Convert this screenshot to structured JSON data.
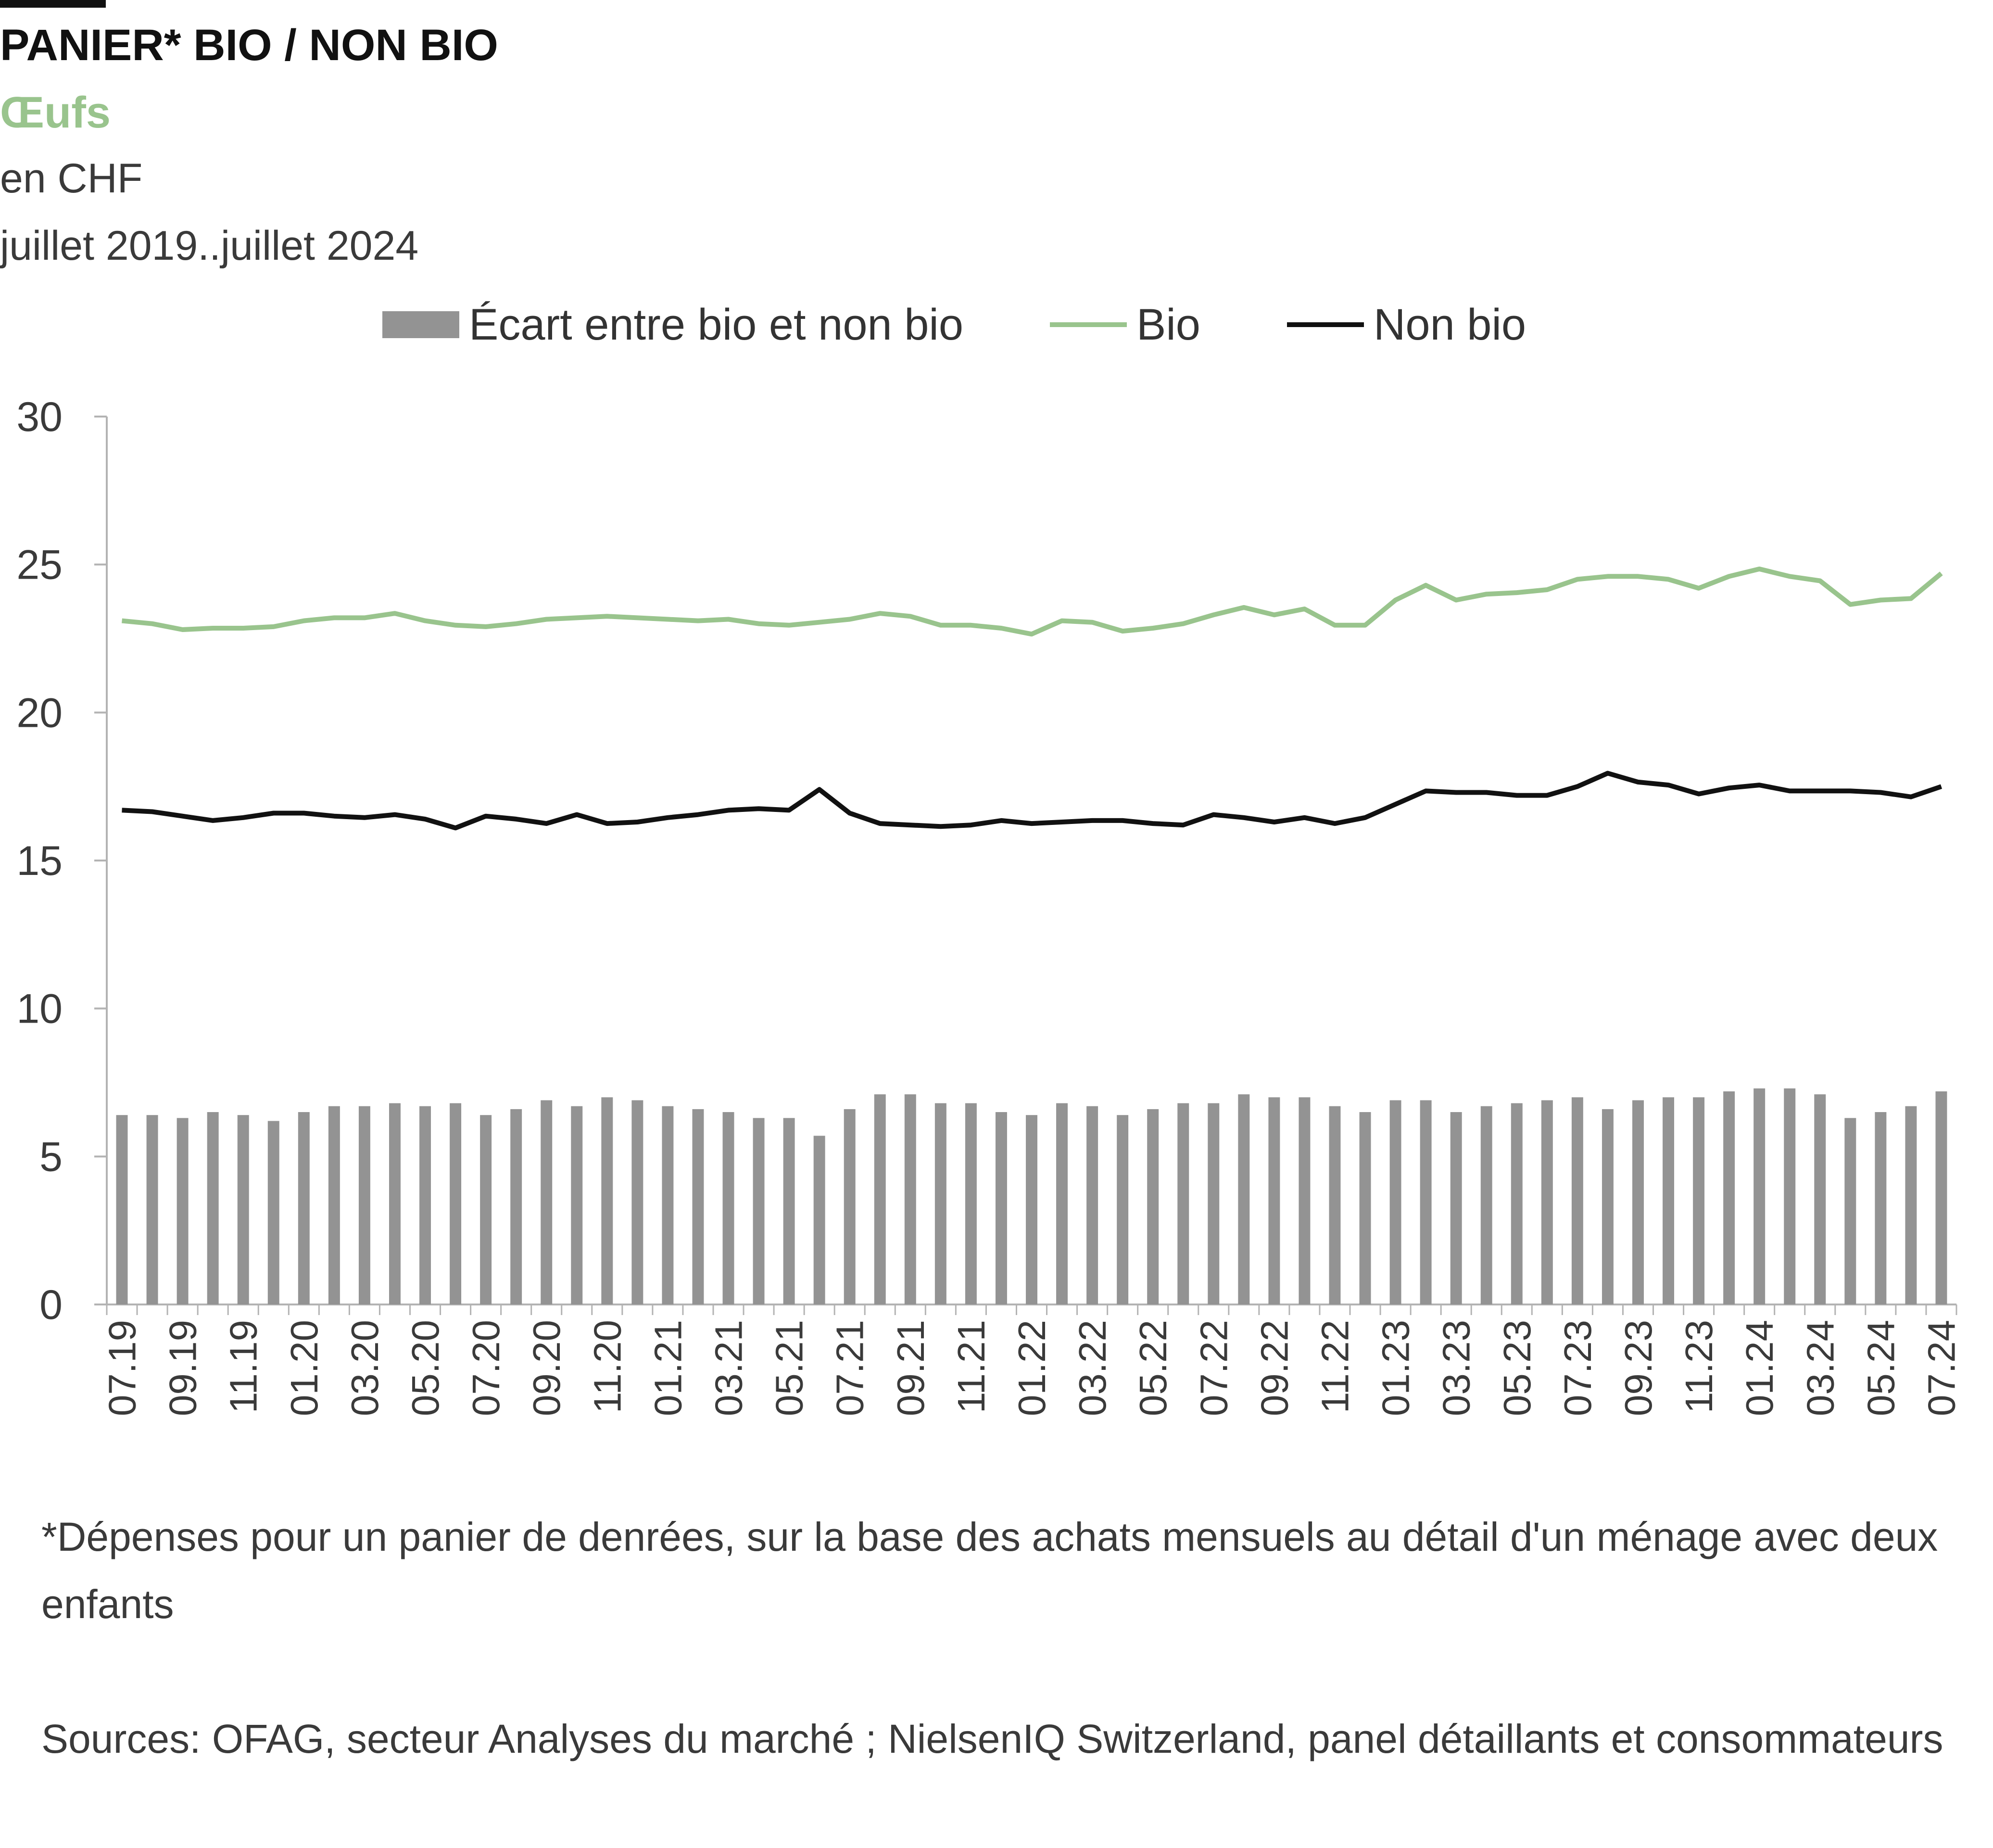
{
  "header": {
    "title": "PANIER* BIO / NON BIO",
    "subtitle": "Œufs",
    "unit": "en CHF",
    "period": "juillet 2019..juillet 2024"
  },
  "colors": {
    "gap_bar": "#939393",
    "bio_line": "#99c48d",
    "nonbio_line": "#111111",
    "axis": "#b3b3b3",
    "subtitle": "#99c48d"
  },
  "legend": {
    "gap": "Écart entre bio et non bio",
    "bio": "Bio",
    "nonbio": "Non bio"
  },
  "footnote": "*Dépenses pour un panier de denrées, sur la base des achats mensuels au détail d'un ménage avec deux enfants",
  "sources": "Sources: OFAG, secteur Analyses du marché ; NielsenIQ Switzerland, panel détaillants et consommateurs",
  "chart_data": {
    "type": "bar+line",
    "ylim": [
      0,
      30
    ],
    "yticks": [
      0,
      5,
      10,
      15,
      20,
      25,
      30
    ],
    "legend_position": "top",
    "grid": false,
    "categories": [
      "07.19",
      "08.19",
      "09.19",
      "10.19",
      "11.19",
      "12.19",
      "01.20",
      "02.20",
      "03.20",
      "04.20",
      "05.20",
      "06.20",
      "07.20",
      "08.20",
      "09.20",
      "10.20",
      "11.20",
      "12.20",
      "01.21",
      "02.21",
      "03.21",
      "04.21",
      "05.21",
      "06.21",
      "07.21",
      "08.21",
      "09.21",
      "10.21",
      "11.21",
      "12.21",
      "01.22",
      "02.22",
      "03.22",
      "04.22",
      "05.22",
      "06.22",
      "07.22",
      "08.22",
      "09.22",
      "10.22",
      "11.22",
      "12.22",
      "01.23",
      "02.23",
      "03.23",
      "04.23",
      "05.23",
      "06.23",
      "07.23",
      "08.23",
      "09.23",
      "10.23",
      "11.23",
      "12.23",
      "01.24",
      "02.24",
      "03.24",
      "04.24",
      "05.24",
      "06.24",
      "07.24"
    ],
    "tick_labels": [
      "07.19",
      "09.19",
      "11.19",
      "01.20",
      "03.20",
      "05.20",
      "07.20",
      "09.20",
      "11.20",
      "01.21",
      "03.21",
      "05.21",
      "07.21",
      "09.21",
      "11.21",
      "01.22",
      "03.22",
      "05.22",
      "07.22",
      "09.22",
      "11.22",
      "01.23",
      "03.23",
      "05.23",
      "07.23",
      "09.23",
      "11.23",
      "01.24",
      "03.24",
      "05.24",
      "07.24"
    ],
    "series": [
      {
        "name": "Écart entre bio et non bio",
        "type": "bar",
        "values": [
          6.4,
          6.4,
          6.3,
          6.5,
          6.4,
          6.2,
          6.5,
          6.7,
          6.7,
          6.8,
          6.7,
          6.8,
          6.4,
          6.6,
          6.9,
          6.7,
          7.0,
          6.9,
          6.7,
          6.6,
          6.5,
          6.3,
          6.3,
          5.7,
          6.6,
          7.1,
          7.1,
          6.8,
          6.8,
          6.5,
          6.4,
          6.8,
          6.7,
          6.4,
          6.6,
          6.8,
          6.8,
          7.1,
          7.0,
          7.0,
          6.7,
          6.5,
          6.9,
          6.9,
          6.5,
          6.7,
          6.8,
          6.9,
          7.0,
          6.6,
          6.9,
          7.0,
          7.0,
          7.2,
          7.3,
          7.3,
          7.1,
          6.3,
          6.5,
          6.7,
          7.2
        ]
      },
      {
        "name": "Bio",
        "type": "line",
        "values": [
          23.1,
          23.0,
          22.8,
          22.85,
          22.85,
          22.9,
          23.1,
          23.2,
          23.2,
          23.35,
          23.1,
          22.95,
          22.9,
          23.0,
          23.15,
          23.2,
          23.25,
          23.2,
          23.15,
          23.1,
          23.15,
          23.0,
          22.95,
          23.05,
          23.15,
          23.35,
          23.25,
          22.95,
          22.95,
          22.85,
          22.65,
          23.1,
          23.05,
          22.75,
          22.85,
          23.0,
          23.3,
          23.55,
          23.3,
          23.5,
          22.95,
          22.95,
          23.8,
          24.3,
          23.8,
          24.0,
          24.05,
          24.15,
          24.5,
          24.6,
          24.6,
          24.5,
          24.2,
          24.6,
          24.85,
          24.6,
          24.45,
          23.65,
          23.8,
          23.85,
          24.7
        ]
      },
      {
        "name": "Non bio",
        "type": "line",
        "values": [
          16.7,
          16.65,
          16.5,
          16.35,
          16.45,
          16.6,
          16.6,
          16.5,
          16.45,
          16.55,
          16.4,
          16.1,
          16.5,
          16.4,
          16.25,
          16.55,
          16.25,
          16.3,
          16.45,
          16.55,
          16.7,
          16.75,
          16.7,
          17.4,
          16.6,
          16.25,
          16.2,
          16.15,
          16.2,
          16.35,
          16.25,
          16.3,
          16.35,
          16.35,
          16.25,
          16.2,
          16.55,
          16.45,
          16.3,
          16.45,
          16.25,
          16.45,
          16.9,
          17.35,
          17.3,
          17.3,
          17.2,
          17.2,
          17.5,
          17.95,
          17.65,
          17.55,
          17.25,
          17.45,
          17.55,
          17.35,
          17.35,
          17.35,
          17.3,
          17.15,
          17.5
        ]
      }
    ]
  }
}
